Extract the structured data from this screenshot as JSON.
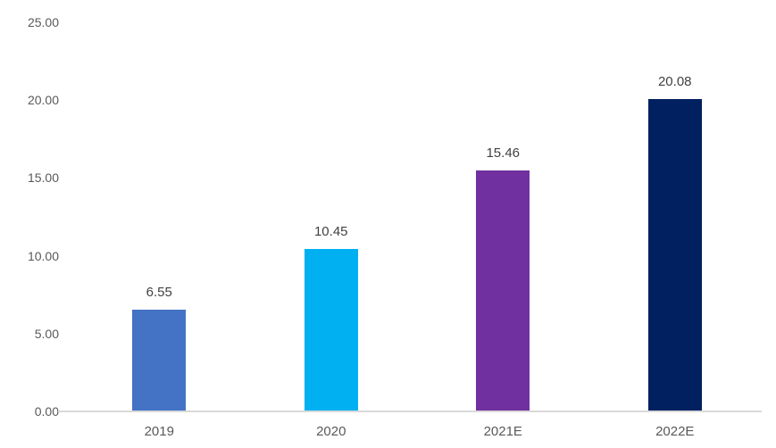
{
  "chart_data": {
    "type": "bar",
    "categories": [
      "2019",
      "2020",
      "2021E",
      "2022E"
    ],
    "values": [
      6.55,
      10.45,
      15.46,
      20.08
    ],
    "data_labels": [
      "6.55",
      "10.45",
      "15.46",
      "20.08"
    ],
    "bar_colors": [
      "#4472c4",
      "#00b0f0",
      "#7030a0",
      "#002060"
    ],
    "title": "",
    "xlabel": "",
    "ylabel": "",
    "ylim": [
      0,
      25
    ],
    "ytick_step": 5,
    "ytick_labels": [
      "0.00",
      "5.00",
      "10.00",
      "15.00",
      "20.00",
      "25.00"
    ],
    "ytick_values": [
      0,
      5,
      10,
      15,
      20,
      25
    ],
    "grid": false,
    "legend": false,
    "colors": {
      "axis_line": "#d9d9d9",
      "tick_label": "#595959",
      "data_label": "#404040",
      "background": "#ffffff"
    }
  }
}
